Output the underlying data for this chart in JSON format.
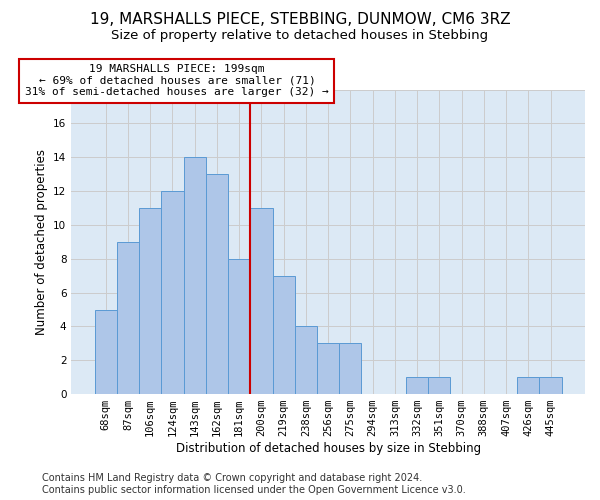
{
  "title1": "19, MARSHALLS PIECE, STEBBING, DUNMOW, CM6 3RZ",
  "title2": "Size of property relative to detached houses in Stebbing",
  "xlabel": "Distribution of detached houses by size in Stebbing",
  "ylabel": "Number of detached properties",
  "categories": [
    "68sqm",
    "87sqm",
    "106sqm",
    "124sqm",
    "143sqm",
    "162sqm",
    "181sqm",
    "200sqm",
    "219sqm",
    "238sqm",
    "256sqm",
    "275sqm",
    "294sqm",
    "313sqm",
    "332sqm",
    "351sqm",
    "370sqm",
    "388sqm",
    "407sqm",
    "426sqm",
    "445sqm"
  ],
  "values": [
    5,
    9,
    11,
    12,
    14,
    13,
    8,
    11,
    7,
    4,
    3,
    3,
    0,
    0,
    1,
    1,
    0,
    0,
    0,
    1,
    1
  ],
  "bar_color": "#aec6e8",
  "bar_edge_color": "#5a9ad4",
  "vline_index": 7,
  "annotation_line1": "19 MARSHALLS PIECE: 199sqm",
  "annotation_line2": "← 69% of detached houses are smaller (71)",
  "annotation_line3": "31% of semi-detached houses are larger (32) →",
  "annotation_box_color": "#ffffff",
  "annotation_box_edge": "#cc0000",
  "vline_color": "#cc0000",
  "ylim": [
    0,
    18
  ],
  "yticks": [
    0,
    2,
    4,
    6,
    8,
    10,
    12,
    14,
    16,
    18
  ],
  "grid_color": "#cccccc",
  "background_color": "#dce9f5",
  "footer_text": "Contains HM Land Registry data © Crown copyright and database right 2024.\nContains public sector information licensed under the Open Government Licence v3.0.",
  "title1_fontsize": 11,
  "title2_fontsize": 9.5,
  "xlabel_fontsize": 8.5,
  "ylabel_fontsize": 8.5,
  "tick_fontsize": 7.5,
  "footer_fontsize": 7
}
